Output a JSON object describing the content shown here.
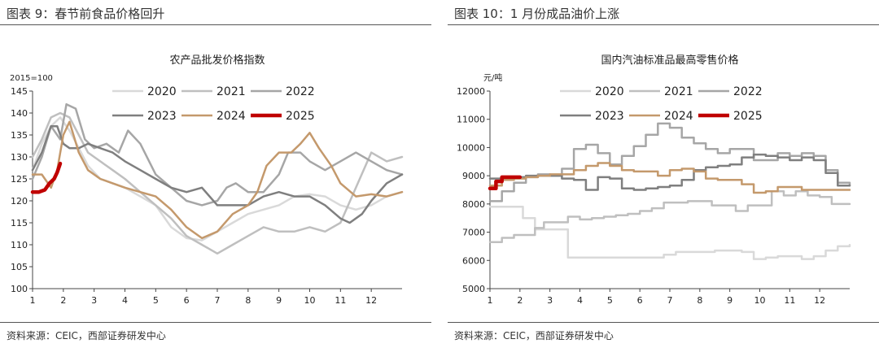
{
  "figures": [
    {
      "figure_title": "图表 9：春节前食品价格回升",
      "source": "资料来源：CEIC，西部证券研发中心"
    },
    {
      "figure_title": "图表 10：1 月份成品油价上涨",
      "source": "资料来源：CEIC，西部证券研发中心"
    }
  ],
  "chart_data": [
    {
      "type": "line",
      "title": "农产品批发价格指数",
      "unit_label": "2015=100",
      "xlabel": "",
      "ylabel": "",
      "x_ticks": [
        "1",
        "2",
        "3",
        "4",
        "5",
        "6",
        "7",
        "8",
        "9",
        "10",
        "11",
        "12"
      ],
      "xlim": [
        1,
        13
      ],
      "ylim": [
        100,
        145
      ],
      "y_ticks": [
        100,
        105,
        110,
        115,
        120,
        125,
        130,
        135,
        140,
        145
      ],
      "grid": false,
      "legend": "top",
      "series": [
        {
          "name": "2020",
          "color": "#d9d9d9",
          "width": 2.5,
          "x": [
            1,
            1.3,
            1.6,
            1.9,
            2.2,
            2.5,
            2.8,
            3.2,
            3.6,
            4,
            4.5,
            5,
            5.5,
            6,
            6.5,
            7,
            7.5,
            8,
            8.5,
            9,
            9.5,
            10,
            10.5,
            11,
            11.5,
            12,
            12.5,
            13
          ],
          "y": [
            127,
            133,
            137,
            139,
            136,
            132,
            128,
            125,
            124,
            123,
            121,
            119,
            114,
            111.5,
            111,
            113,
            115,
            117,
            118,
            119,
            121,
            121.5,
            121,
            119,
            118,
            119,
            121,
            122
          ]
        },
        {
          "name": "2021",
          "color": "#bfbfbf",
          "width": 2.5,
          "x": [
            1,
            1.3,
            1.6,
            1.9,
            2.2,
            2.5,
            2.8,
            3.2,
            3.6,
            4,
            4.5,
            5,
            5.5,
            6,
            6.5,
            7,
            7.5,
            8,
            8.5,
            9,
            9.5,
            10,
            10.5,
            11,
            11.5,
            12,
            12.5,
            13
          ],
          "y": [
            130,
            134,
            139,
            140,
            139,
            135,
            131,
            129,
            127,
            125,
            122,
            119,
            116,
            112,
            110,
            108,
            110,
            112,
            114,
            113,
            113,
            114,
            113,
            115,
            123,
            131,
            129,
            130
          ]
        },
        {
          "name": "2022",
          "color": "#a6a6a6",
          "width": 2.5,
          "x": [
            1,
            1.3,
            1.6,
            1.9,
            2.1,
            2.4,
            2.7,
            3,
            3.4,
            3.8,
            4.1,
            4.5,
            5,
            5.5,
            6,
            6.5,
            7,
            7.3,
            7.6,
            8,
            8.5,
            9,
            9.3,
            9.7,
            10,
            10.5,
            11,
            11.5,
            12,
            12.5,
            13
          ],
          "y": [
            125,
            130,
            137,
            134,
            142,
            141,
            134,
            132,
            133,
            131,
            136,
            133,
            126,
            123,
            120,
            119,
            120,
            123,
            124,
            122,
            122,
            126,
            131,
            131,
            129,
            127,
            129,
            131,
            129,
            127,
            126
          ]
        },
        {
          "name": "2023",
          "color": "#7f7f7f",
          "width": 2.5,
          "x": [
            1,
            1.3,
            1.6,
            1.8,
            2,
            2.2,
            2.5,
            2.8,
            3.2,
            3.6,
            4,
            4.5,
            5,
            5.5,
            6,
            6.5,
            7,
            7.5,
            8,
            8.5,
            9,
            9.5,
            10,
            10.5,
            11,
            11.3,
            11.7,
            12,
            12.5,
            13
          ],
          "y": [
            127,
            131,
            137,
            137,
            133,
            132,
            132,
            133,
            132,
            131,
            129,
            127,
            125,
            123,
            122,
            123,
            119,
            119,
            119,
            121,
            122,
            121,
            121,
            119,
            116,
            115,
            117,
            120,
            124,
            126
          ]
        },
        {
          "name": "2024",
          "color": "#c4996c",
          "width": 2.5,
          "x": [
            1,
            1.3,
            1.6,
            1.8,
            2,
            2.2,
            2.5,
            2.8,
            3.2,
            3.6,
            4,
            4.5,
            5,
            5.5,
            6,
            6.5,
            7,
            7.5,
            8,
            8.3,
            8.6,
            9,
            9.4,
            9.7,
            10,
            10.3,
            10.7,
            11,
            11.5,
            12,
            12.5,
            13
          ],
          "y": [
            126,
            126,
            123,
            127,
            135,
            138,
            131,
            127,
            125,
            124,
            123,
            122,
            121,
            118,
            114,
            111.5,
            113,
            117,
            119,
            122,
            128,
            131,
            131,
            133,
            135.5,
            132,
            128,
            124,
            121,
            121.5,
            121,
            122
          ]
        },
        {
          "name": "2025",
          "color": "#c00000",
          "width": 4.5,
          "x": [
            1,
            1.2,
            1.4,
            1.55,
            1.7,
            1.8,
            1.9
          ],
          "y": [
            122,
            122,
            122.5,
            124,
            125,
            126.5,
            128.5
          ]
        }
      ]
    },
    {
      "type": "line",
      "title": "国内汽油标准品最高零售价格",
      "unit_label": "元/吨",
      "xlabel": "",
      "ylabel": "",
      "x_ticks": [
        "1",
        "2",
        "3",
        "4",
        "5",
        "6",
        "7",
        "8",
        "9",
        "10",
        "11",
        "12"
      ],
      "xlim": [
        1,
        13
      ],
      "ylim": [
        5000,
        12000
      ],
      "y_ticks": [
        5000,
        6000,
        7000,
        8000,
        9000,
        10000,
        11000,
        12000
      ],
      "grid": false,
      "legend": "top",
      "series": [
        {
          "name": "2020",
          "color": "#d9d9d9",
          "width": 2.5,
          "step": true,
          "x": [
            1,
            1.4,
            1.8,
            2.1,
            2.5,
            2.9,
            3.3,
            3.6,
            4,
            4.5,
            5,
            5.5,
            6,
            6.4,
            6.8,
            7.2,
            7.6,
            8,
            8.5,
            9,
            9.4,
            9.8,
            10.2,
            10.6,
            11,
            11.4,
            11.8,
            12.2,
            12.6,
            13
          ],
          "y": [
            7900,
            7900,
            7900,
            7500,
            7100,
            7100,
            7100,
            6100,
            6100,
            6100,
            6100,
            6100,
            6100,
            6100,
            6200,
            6300,
            6300,
            6300,
            6350,
            6350,
            6300,
            6050,
            6100,
            6150,
            6150,
            6050,
            6150,
            6350,
            6500,
            6550
          ]
        },
        {
          "name": "2021",
          "color": "#bfbfbf",
          "width": 2.5,
          "step": true,
          "x": [
            1,
            1.4,
            1.8,
            2.1,
            2.5,
            2.8,
            3.2,
            3.6,
            4,
            4.4,
            4.8,
            5.2,
            5.6,
            6,
            6.4,
            6.8,
            7.2,
            7.6,
            8,
            8.4,
            8.8,
            9.2,
            9.6,
            10,
            10.4,
            10.8,
            11.2,
            11.6,
            12,
            12.4,
            12.8,
            13
          ],
          "y": [
            6650,
            6800,
            6900,
            6900,
            7150,
            7350,
            7350,
            7550,
            7450,
            7500,
            7550,
            7600,
            7650,
            7750,
            7850,
            8050,
            8050,
            8100,
            8100,
            7950,
            7950,
            7750,
            7950,
            7950,
            8450,
            8300,
            8450,
            8300,
            8250,
            8000,
            8000,
            8000
          ]
        },
        {
          "name": "2022",
          "color": "#a6a6a6",
          "width": 2.5,
          "step": true,
          "x": [
            1,
            1.4,
            1.8,
            2.2,
            2.6,
            3,
            3.4,
            3.8,
            4.2,
            4.6,
            5,
            5.4,
            5.8,
            6.2,
            6.6,
            7,
            7.4,
            7.8,
            8.2,
            8.6,
            9,
            9.4,
            9.8,
            10.2,
            10.6,
            11,
            11.4,
            11.8,
            12.2,
            12.6,
            13
          ],
          "y": [
            8100,
            8450,
            8750,
            8950,
            9050,
            9000,
            9250,
            9950,
            10100,
            9800,
            9400,
            9700,
            10050,
            10450,
            10850,
            10700,
            10350,
            10150,
            9950,
            9800,
            9950,
            9950,
            9550,
            9550,
            9800,
            9700,
            9800,
            9700,
            9200,
            8750,
            8650
          ]
        },
        {
          "name": "2023",
          "color": "#7f7f7f",
          "width": 2.5,
          "step": true,
          "x": [
            1,
            1.4,
            1.8,
            2.2,
            2.6,
            3,
            3.4,
            3.8,
            4.2,
            4.6,
            5,
            5.4,
            5.8,
            6.2,
            6.6,
            7,
            7.4,
            7.8,
            8.2,
            8.6,
            9,
            9.4,
            9.8,
            10.2,
            10.6,
            11,
            11.4,
            11.8,
            12.2,
            12.6,
            13
          ],
          "y": [
            8900,
            8950,
            8950,
            9000,
            9000,
            9000,
            8900,
            8850,
            8500,
            8950,
            8900,
            8550,
            8500,
            8550,
            8600,
            8650,
            8850,
            9200,
            9300,
            9350,
            9400,
            9650,
            9750,
            9700,
            9650,
            9550,
            9650,
            9550,
            9100,
            8650,
            8650
          ]
        },
        {
          "name": "2024",
          "color": "#c4996c",
          "width": 2.5,
          "step": true,
          "x": [
            1,
            1.4,
            1.8,
            2.2,
            2.6,
            3,
            3.4,
            3.8,
            4.2,
            4.6,
            5,
            5.4,
            5.8,
            6.2,
            6.6,
            7,
            7.4,
            7.8,
            8.2,
            8.6,
            9,
            9.4,
            9.8,
            10.2,
            10.6,
            11,
            11.4,
            11.8,
            12.2,
            12.6,
            13
          ],
          "y": [
            8650,
            8850,
            8900,
            8950,
            9000,
            9050,
            9050,
            9200,
            9350,
            9450,
            9350,
            9200,
            9150,
            9150,
            9000,
            9200,
            9250,
            9150,
            8900,
            8850,
            8850,
            8700,
            8400,
            8450,
            8600,
            8600,
            8500,
            8500,
            8500,
            8500,
            8500
          ]
        },
        {
          "name": "2025",
          "color": "#c00000",
          "width": 4.5,
          "step": true,
          "x": [
            1,
            1.2,
            1.4,
            1.6,
            1.8,
            2.0
          ],
          "y": [
            8550,
            8800,
            8950,
            8950,
            8950,
            8950
          ]
        }
      ]
    }
  ]
}
